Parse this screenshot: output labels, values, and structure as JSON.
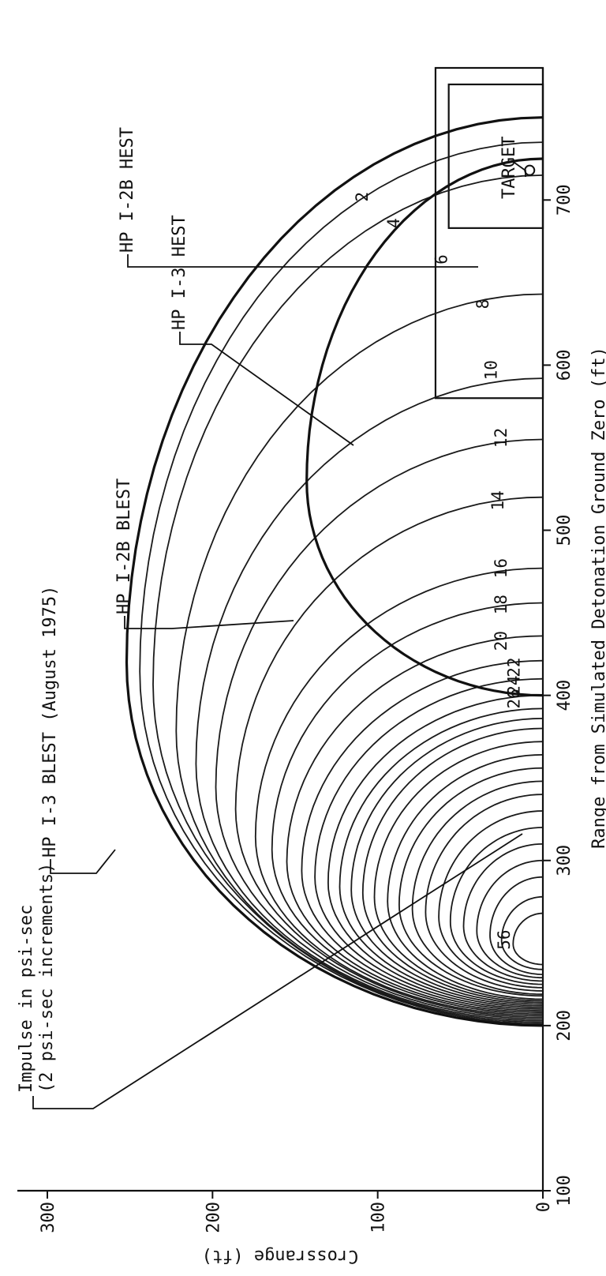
{
  "chart_data": {
    "type": "line",
    "xlabel": "Range from Simulated Detonation Ground Zero (ft)",
    "ylabel": "Crossrange (ft)",
    "xlim": [
      100,
      780
    ],
    "ylim": [
      0,
      300
    ],
    "x_ticks": [
      "100",
      "200",
      "300",
      "400",
      "500",
      "600",
      "700"
    ],
    "y_ticks": [
      "0",
      "100",
      "200",
      "300"
    ],
    "legend_note": [
      "Impulse in psi-sec",
      "(2 psi-sec increments)"
    ],
    "contour_units": "psi-sec",
    "contours": [
      {
        "label": "56",
        "value": 56,
        "x_min": 237,
        "x_max": 268,
        "y_max": 18
      },
      {
        "label": "",
        "value": 54,
        "x_min": 234,
        "x_max": 278,
        "y_max": 25
      },
      {
        "label": "",
        "value": 52,
        "x_min": 231,
        "x_max": 290,
        "y_max": 32
      },
      {
        "label": "",
        "value": 50,
        "x_min": 229,
        "x_max": 300,
        "y_max": 40
      },
      {
        "label": "",
        "value": 48,
        "x_min": 227,
        "x_max": 310,
        "y_max": 48
      },
      {
        "label": "",
        "value": 46,
        "x_min": 225,
        "x_max": 320,
        "y_max": 56
      },
      {
        "label": "",
        "value": 44,
        "x_min": 223,
        "x_max": 330,
        "y_max": 63
      },
      {
        "label": "",
        "value": 42,
        "x_min": 221,
        "x_max": 340,
        "y_max": 71
      },
      {
        "label": "",
        "value": 40,
        "x_min": 219,
        "x_max": 348,
        "y_max": 79
      },
      {
        "label": "",
        "value": 38,
        "x_min": 218,
        "x_max": 356,
        "y_max": 87
      },
      {
        "label": "",
        "value": 36,
        "x_min": 216,
        "x_max": 364,
        "y_max": 94
      },
      {
        "label": "",
        "value": 34,
        "x_min": 215,
        "x_max": 372,
        "y_max": 102
      },
      {
        "label": "",
        "value": 32,
        "x_min": 214,
        "x_max": 380,
        "y_max": 109
      },
      {
        "label": "",
        "value": 30,
        "x_min": 213,
        "x_max": 386,
        "y_max": 116
      },
      {
        "label": "",
        "value": 28,
        "x_min": 212,
        "x_max": 392,
        "y_max": 123
      },
      {
        "label": "26",
        "value": 26,
        "x_min": 211,
        "x_max": 400,
        "y_max": 130
      },
      {
        "label": "24",
        "value": 24,
        "x_min": 210,
        "x_max": 410,
        "y_max": 138
      },
      {
        "label": "22",
        "value": 22,
        "x_min": 209,
        "x_max": 421,
        "y_max": 146
      },
      {
        "label": "20",
        "value": 20,
        "x_min": 208,
        "x_max": 436,
        "y_max": 155
      },
      {
        "label": "18",
        "value": 18,
        "x_min": 207,
        "x_max": 456,
        "y_max": 164
      },
      {
        "label": "16",
        "value": 16,
        "x_min": 206,
        "x_max": 477,
        "y_max": 174
      },
      {
        "label": "14",
        "value": 14,
        "x_min": 205,
        "x_max": 520,
        "y_max": 186
      },
      {
        "label": "12",
        "value": 12,
        "x_min": 204,
        "x_max": 555,
        "y_max": 198
      },
      {
        "label": "10",
        "value": 10,
        "x_min": 203,
        "x_max": 592,
        "y_max": 210
      },
      {
        "label": "8",
        "value": 8,
        "x_min": 202,
        "x_max": 643,
        "y_max": 222
      },
      {
        "label": "6",
        "value": 6,
        "x_min": 201,
        "x_max": 715,
        "y_max": 236
      },
      {
        "label": "4",
        "value": 4,
        "x_min": 201,
        "x_max": 735,
        "y_max": 244
      },
      {
        "label": "2",
        "value": 2,
        "x_min": 200,
        "x_max": 750,
        "y_max": 252
      }
    ],
    "annotations": {
      "i3_blest": "HP I-3 BLEST (August 1975)",
      "i2b_blest": "HP I-2B BLEST",
      "i3_hest": "HP I-3 HEST",
      "i2b_hest": "HP I-2B HEST",
      "target": "TARGET"
    },
    "i3_blest_boundary": {
      "x_min": 200,
      "x_max": 750,
      "y_max": 252
    },
    "i2b_blest_boundary": {
      "x_min": 400,
      "x_max": 725,
      "y_max": 143
    },
    "i2b_hest_region": {
      "x": [
        580,
        780
      ],
      "y": [
        0,
        65
      ]
    },
    "i3_hest_region": {
      "x": [
        683,
        770
      ],
      "y": [
        0,
        57
      ]
    },
    "target_point": {
      "x": 718,
      "y": 8
    }
  }
}
